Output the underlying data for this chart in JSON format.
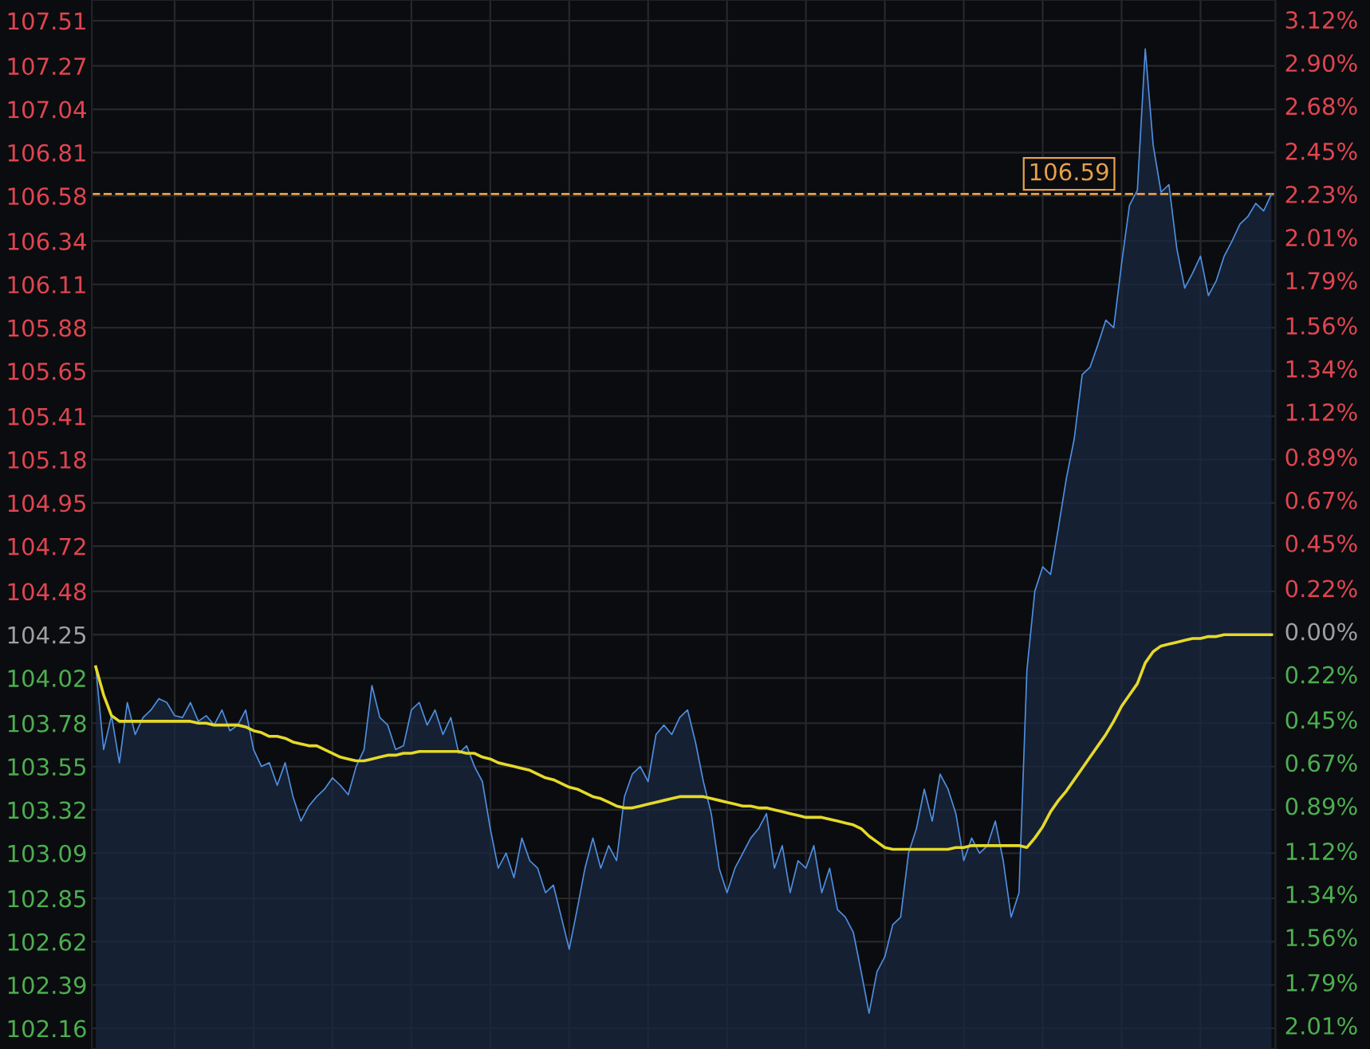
{
  "chart_data": {
    "type": "area",
    "categories": [
      null,
      null,
      null,
      null,
      null,
      null,
      null,
      null,
      null,
      null,
      null,
      null,
      null,
      null,
      null,
      null,
      null,
      null,
      null,
      null,
      null,
      null,
      null,
      null,
      null,
      null,
      null,
      null,
      null,
      null,
      null,
      null,
      null,
      null,
      null,
      null,
      null,
      null,
      null,
      null,
      null,
      null,
      null,
      null,
      null,
      null,
      null,
      null,
      null,
      null,
      null,
      null,
      null,
      null,
      null,
      null,
      null,
      null,
      null,
      null,
      null,
      null,
      null,
      null,
      null,
      null,
      null,
      null,
      null,
      null,
      null,
      null,
      null,
      null,
      null,
      null,
      null,
      null,
      null,
      null,
      null,
      null,
      null,
      null,
      null,
      null,
      null,
      null,
      null,
      null,
      null,
      null,
      null,
      null,
      null,
      null,
      null,
      null,
      null,
      null,
      null,
      null,
      null,
      null,
      null,
      null,
      null,
      null,
      null,
      null,
      null,
      null,
      null,
      null,
      null,
      null,
      null,
      null,
      null,
      null,
      null,
      null,
      null,
      null,
      null,
      null,
      null,
      null,
      null,
      null,
      null,
      null,
      null,
      null,
      null,
      null,
      null,
      null,
      null,
      null,
      null,
      null,
      null,
      null,
      null,
      null,
      null,
      null,
      null,
      null
    ],
    "series": [
      {
        "color": "#4f8fe0",
        "values": [
          104.08,
          103.64,
          103.82,
          103.57,
          103.89,
          103.72,
          103.81,
          103.85,
          103.91,
          103.89,
          103.82,
          103.81,
          103.89,
          103.79,
          103.82,
          103.77,
          103.85,
          103.74,
          103.77,
          103.85,
          103.64,
          103.55,
          103.57,
          103.45,
          103.57,
          103.39,
          103.26,
          103.34,
          103.39,
          103.43,
          103.49,
          103.45,
          103.4,
          103.55,
          103.64,
          103.98,
          103.81,
          103.77,
          103.64,
          103.66,
          103.85,
          103.89,
          103.77,
          103.85,
          103.72,
          103.81,
          103.62,
          103.66,
          103.55,
          103.47,
          103.22,
          103.01,
          103.09,
          102.96,
          103.17,
          103.05,
          103.01,
          102.88,
          102.92,
          102.75,
          102.58,
          102.79,
          103.01,
          103.17,
          103.01,
          103.13,
          103.05,
          103.39,
          103.51,
          103.55,
          103.47,
          103.72,
          103.77,
          103.72,
          103.81,
          103.85,
          103.68,
          103.47,
          103.3,
          103.01,
          102.88,
          103.01,
          103.09,
          103.17,
          103.22,
          103.3,
          103.01,
          103.13,
          102.88,
          103.05,
          103.01,
          103.13,
          102.88,
          103.01,
          102.79,
          102.75,
          102.67,
          102.46,
          102.24,
          102.46,
          102.54,
          102.71,
          102.75,
          103.09,
          103.22,
          103.43,
          103.26,
          103.51,
          103.43,
          103.3,
          103.05,
          103.17,
          103.09,
          103.13,
          103.26,
          103.05,
          102.75,
          102.88,
          104.06,
          104.48,
          104.61,
          104.57,
          104.82,
          105.08,
          105.29,
          105.63,
          105.67,
          105.79,
          105.92,
          105.88,
          106.22,
          106.53,
          106.61,
          107.36,
          106.85,
          106.6,
          106.64,
          106.3,
          106.09,
          106.17,
          106.26,
          106.05,
          106.13,
          106.26,
          106.34,
          106.43,
          106.47,
          106.54,
          106.5,
          106.59
        ]
      },
      {
        "type": "line",
        "color": "#e5d92a",
        "values": [
          104.08,
          103.93,
          103.82,
          103.79,
          103.79,
          103.79,
          103.79,
          103.79,
          103.79,
          103.79,
          103.79,
          103.79,
          103.79,
          103.78,
          103.78,
          103.77,
          103.77,
          103.77,
          103.77,
          103.76,
          103.74,
          103.73,
          103.71,
          103.71,
          103.7,
          103.68,
          103.67,
          103.66,
          103.66,
          103.64,
          103.62,
          103.6,
          103.59,
          103.58,
          103.58,
          103.59,
          103.6,
          103.61,
          103.61,
          103.62,
          103.62,
          103.63,
          103.63,
          103.63,
          103.63,
          103.63,
          103.63,
          103.62,
          103.62,
          103.6,
          103.59,
          103.57,
          103.56,
          103.55,
          103.54,
          103.53,
          103.51,
          103.49,
          103.48,
          103.46,
          103.44,
          103.43,
          103.41,
          103.39,
          103.38,
          103.36,
          103.34,
          103.33,
          103.33,
          103.34,
          103.35,
          103.36,
          103.37,
          103.38,
          103.39,
          103.39,
          103.39,
          103.39,
          103.38,
          103.37,
          103.36,
          103.35,
          103.34,
          103.34,
          103.33,
          103.33,
          103.32,
          103.31,
          103.3,
          103.29,
          103.28,
          103.28,
          103.28,
          103.27,
          103.26,
          103.25,
          103.24,
          103.22,
          103.18,
          103.15,
          103.12,
          103.11,
          103.11,
          103.11,
          103.11,
          103.11,
          103.11,
          103.11,
          103.11,
          103.12,
          103.12,
          103.13,
          103.13,
          103.13,
          103.13,
          103.13,
          103.13,
          103.13,
          103.12,
          103.17,
          103.23,
          103.31,
          103.37,
          103.42,
          103.48,
          103.54,
          103.6,
          103.66,
          103.72,
          103.79,
          103.87,
          103.93,
          103.99,
          104.1,
          104.16,
          104.19,
          104.2,
          104.21,
          104.22,
          104.23,
          104.23,
          104.24,
          104.24,
          104.25,
          104.25,
          104.25,
          104.25,
          104.25,
          104.25,
          104.25
        ]
      }
    ],
    "ylim": [
      102.05,
      107.62
    ],
    "yticks": [
      102.16,
      102.39,
      102.62,
      102.85,
      103.09,
      103.32,
      103.55,
      103.78,
      104.02,
      104.25,
      104.48,
      104.72,
      104.95,
      105.18,
      105.41,
      105.65,
      105.88,
      106.11,
      106.34,
      106.58,
      106.81,
      107.04,
      107.27,
      107.51
    ],
    "y2lim": [
      -2.13,
      3.22
    ],
    "y2ticks": [
      {
        "value": -2.01,
        "label": "2.01%"
      },
      {
        "value": -1.79,
        "label": "1.79%"
      },
      {
        "value": -1.56,
        "label": "1.56%"
      },
      {
        "value": -1.34,
        "label": "1.34%"
      },
      {
        "value": -1.12,
        "label": "1.12%"
      },
      {
        "value": -0.89,
        "label": "0.89%"
      },
      {
        "value": -0.67,
        "label": "0.67%"
      },
      {
        "value": -0.45,
        "label": "0.45%"
      },
      {
        "value": -0.22,
        "label": "0.22%"
      },
      {
        "value": 0,
        "label": "0.00%"
      },
      {
        "value": 0.22,
        "label": "0.22%"
      },
      {
        "value": 0.45,
        "label": "0.45%"
      },
      {
        "value": 0.67,
        "label": "0.67%"
      },
      {
        "value": 0.89,
        "label": "0.89%"
      },
      {
        "value": 1.12,
        "label": "1.12%"
      },
      {
        "value": 1.34,
        "label": "1.34%"
      },
      {
        "value": 1.56,
        "label": "1.56%"
      },
      {
        "value": 1.79,
        "label": "1.79%"
      },
      {
        "value": 2.01,
        "label": "2.01%"
      },
      {
        "value": 2.23,
        "label": "2.23%"
      },
      {
        "value": 2.45,
        "label": "2.45%"
      },
      {
        "value": 2.68,
        "label": "2.68%"
      },
      {
        "value": 2.9,
        "label": "2.90%"
      },
      {
        "value": 3.12,
        "label": "3.12%"
      }
    ],
    "ref_lines": [
      {
        "axis": "y",
        "value": 106.59,
        "label": "106.59",
        "color": "#e8a04a",
        "line_style": "dashed"
      }
    ],
    "grid": true
  }
}
